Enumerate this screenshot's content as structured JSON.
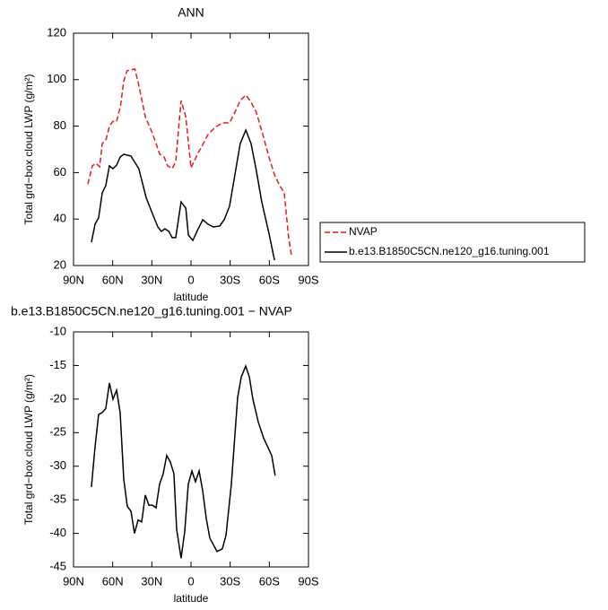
{
  "chart_data": [
    {
      "type": "line",
      "title": "ANN",
      "x_label": "latitude",
      "y_label": "Total grd−box cloud LWP (g/m²)",
      "xlim": [
        90,
        -90
      ],
      "ylim": [
        20,
        120
      ],
      "xticks": [
        {
          "value": 90,
          "label": "90N"
        },
        {
          "value": 60,
          "label": "60N"
        },
        {
          "value": 30,
          "label": "30N"
        },
        0,
        {
          "value": -30,
          "label": "30S"
        },
        {
          "value": -60,
          "label": "60S"
        },
        {
          "value": -90,
          "label": "90S"
        }
      ],
      "yticks": [
        20,
        40,
        60,
        80,
        100,
        120
      ],
      "legend": "outside-right",
      "series": [
        {
          "name": "NVAP",
          "color": "#e41a1c",
          "dash": true,
          "x": [
            79,
            75.6,
            72.8,
            70,
            68,
            65,
            62.5,
            60,
            57,
            54,
            51.5,
            49,
            43,
            40,
            35,
            29.6,
            24,
            20.6,
            18,
            14.4,
            11.7,
            7.6,
            4,
            0,
            -5,
            -9,
            -13,
            -18.5,
            -24,
            -29.5,
            -34,
            -37.7,
            -42,
            -46,
            -50,
            -55,
            -59.7,
            -64,
            -68,
            -71.4,
            -74.8,
            -77
          ],
          "values": [
            55,
            62.9,
            64,
            62.5,
            72.5,
            74.4,
            80,
            82,
            82,
            88.7,
            99.5,
            103.8,
            104.6,
            97.6,
            84,
            77,
            68,
            66.7,
            63,
            61.7,
            64.8,
            91,
            84,
            62,
            68,
            72,
            76.4,
            79.5,
            81.4,
            81.4,
            86.4,
            91,
            93.4,
            90.3,
            86,
            76.4,
            66.7,
            59,
            54.4,
            51.3,
            32,
            24.2
          ]
        },
        {
          "name": "b.e13.B1850C5CN.ne120_g16.tuning.001",
          "color": "#000000",
          "dash": false,
          "x": [
            76.3,
            73.5,
            70.8,
            68,
            65.3,
            62.5,
            59.8,
            57,
            54.3,
            51.5,
            46,
            40,
            34.4,
            29.6,
            25.4,
            22.7,
            20,
            17,
            14.4,
            11.7,
            7.6,
            4,
            2,
            -1.4,
            -5.5,
            -9,
            -13,
            -17,
            -22,
            -25.4,
            -29.5,
            -33.6,
            -37.7,
            -42,
            -46,
            -50,
            -54.2,
            -59.7,
            -64
          ],
          "values": [
            30,
            37.8,
            40.5,
            51.3,
            54.4,
            62.9,
            61.7,
            63.2,
            66.7,
            67.9,
            67.1,
            61.7,
            49.3,
            42.4,
            36.6,
            34.7,
            35.8,
            34.7,
            32,
            32,
            47.4,
            44.7,
            33.1,
            30.8,
            35.8,
            39.7,
            37.8,
            36.6,
            37,
            39.7,
            45.5,
            59,
            72.5,
            78.3,
            72.5,
            61,
            47.4,
            33.9,
            22.3
          ]
        }
      ]
    },
    {
      "type": "line",
      "title": "b.e13.B1850C5CN.ne120_g16.tuning.001 − NVAP",
      "x_label": "latitude",
      "y_label": "Total grd−box cloud LWP (g/m²)",
      "xlim": [
        90,
        -90
      ],
      "ylim": [
        -45,
        -10
      ],
      "xticks": [
        {
          "value": 90,
          "label": "90N"
        },
        {
          "value": 60,
          "label": "60N"
        },
        {
          "value": 30,
          "label": "30N"
        },
        0,
        {
          "value": -30,
          "label": "30S"
        },
        {
          "value": -60,
          "label": "60S"
        },
        {
          "value": -90,
          "label": "90S"
        }
      ],
      "yticks": [
        -45,
        -40,
        -35,
        -30,
        -25,
        -20,
        -15,
        -10
      ],
      "series": [
        {
          "color": "#000000",
          "dash": false,
          "x": [
            76.3,
            73.5,
            70.8,
            68,
            65.3,
            62.5,
            59.8,
            57,
            54.3,
            51.5,
            48.8,
            46,
            43.3,
            40.5,
            37.8,
            35,
            32.3,
            29.6,
            26.8,
            24.1,
            21.3,
            18.6,
            15.8,
            13.1,
            11,
            7.6,
            4.8,
            2.1,
            -0.7,
            -3.4,
            -6.2,
            -8.9,
            -11.7,
            -14.4,
            -19.9,
            -24,
            -26.8,
            -30.9,
            -35.7,
            -38.5,
            -41.9,
            -44.7,
            -47.4,
            -51.5,
            -55.6,
            -61.8,
            -64.5
          ],
          "values": [
            -33.1,
            -27.1,
            -22.3,
            -22,
            -21.4,
            -17.6,
            -20,
            -18.7,
            -22,
            -32,
            -36,
            -36.7,
            -40,
            -38,
            -38.3,
            -34.3,
            -35.8,
            -35.8,
            -36.2,
            -32.7,
            -31.1,
            -28.4,
            -29.4,
            -31.1,
            -39.4,
            -43.7,
            -39.7,
            -32.7,
            -30.7,
            -32.3,
            -30.7,
            -33.6,
            -37.8,
            -40.7,
            -42.7,
            -42.3,
            -40.3,
            -32.7,
            -19.8,
            -16.7,
            -15.1,
            -16.7,
            -20,
            -23.4,
            -25.8,
            -28.4,
            -31.4
          ]
        }
      ]
    }
  ]
}
